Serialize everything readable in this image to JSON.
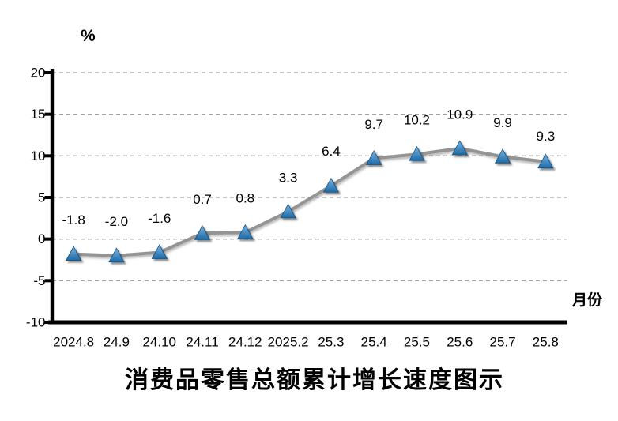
{
  "chart": {
    "unit_label": "%",
    "x_axis_label": "月份",
    "title": "消费品零售总额累计增长速度图示"
  },
  "chart_data": {
    "type": "line",
    "title": "消费品零售总额累计增长速度图示",
    "xlabel": "月份",
    "ylabel": "%",
    "categories": [
      "2024.8",
      "24.9",
      "24.10",
      "24.11",
      "24.12",
      "2025.2",
      "25.3",
      "25.4",
      "25.5",
      "25.6",
      "25.7",
      "25.8"
    ],
    "values": [
      -1.8,
      -2.0,
      -1.6,
      0.7,
      0.8,
      3.3,
      6.4,
      9.7,
      10.2,
      10.9,
      9.9,
      9.3
    ],
    "point_labels": [
      "-1.8",
      "-2.0",
      "-1.6",
      "0.7",
      "0.8",
      "3.3",
      "6.4",
      "9.7",
      "10.2",
      "10.9",
      "9.9",
      "9.3"
    ],
    "ylim": [
      -10,
      20
    ],
    "y_ticks": [
      20,
      15,
      10,
      5,
      0,
      -5,
      -10
    ],
    "y_tick_labels": [
      "20",
      "15",
      "10",
      "5",
      "0",
      "-5",
      "-10"
    ],
    "grid": "horizontal-dashed",
    "legend": "none",
    "colors": {
      "line": "#949494",
      "marker_top": "#7db4e0",
      "marker_bottom": "#1b6aa8",
      "marker_stroke": "#14527e",
      "gridline": "#a0a0a0",
      "axis": "#000000"
    }
  }
}
